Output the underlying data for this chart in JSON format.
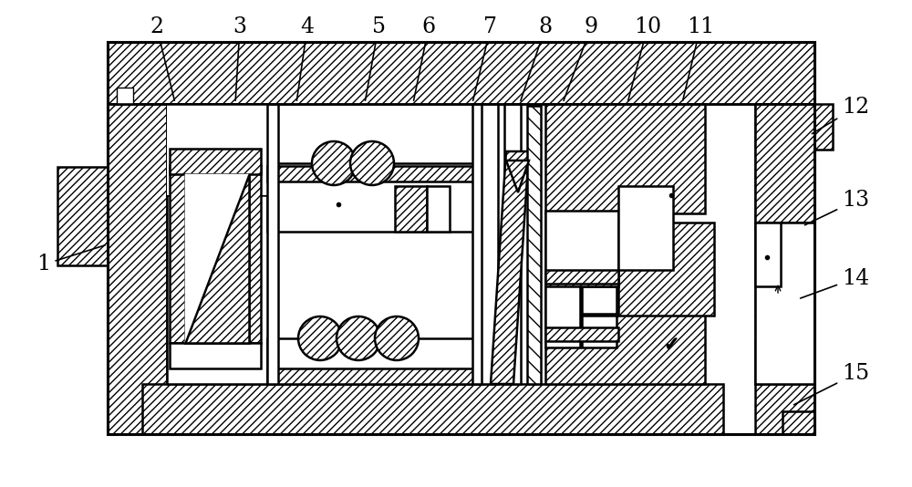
{
  "figsize": [
    10.0,
    5.34
  ],
  "dpi": 100,
  "bg": "#ffffff",
  "lc": "#000000",
  "lw_main": 1.8,
  "lw_thin": 1.0,
  "hatch_dense": "////",
  "hatch_back": "////",
  "annotations": [
    [
      "1",
      48,
      290,
      118,
      268
    ],
    [
      "2",
      172,
      30,
      192,
      113
    ],
    [
      "3",
      263,
      30,
      258,
      113
    ],
    [
      "4",
      337,
      30,
      325,
      113
    ],
    [
      "5",
      415,
      30,
      400,
      113
    ],
    [
      "6",
      470,
      30,
      453,
      113
    ],
    [
      "7",
      538,
      30,
      518,
      113
    ],
    [
      "8",
      598,
      30,
      570,
      113
    ],
    [
      "9",
      648,
      30,
      617,
      113
    ],
    [
      "10",
      710,
      30,
      688,
      113
    ],
    [
      "11",
      768,
      30,
      748,
      113
    ],
    [
      "12",
      938,
      118,
      888,
      148
    ],
    [
      "13",
      938,
      220,
      880,
      248
    ],
    [
      "14",
      938,
      305,
      875,
      328
    ],
    [
      "15",
      938,
      410,
      868,
      445
    ]
  ],
  "label_fontsize": 17
}
